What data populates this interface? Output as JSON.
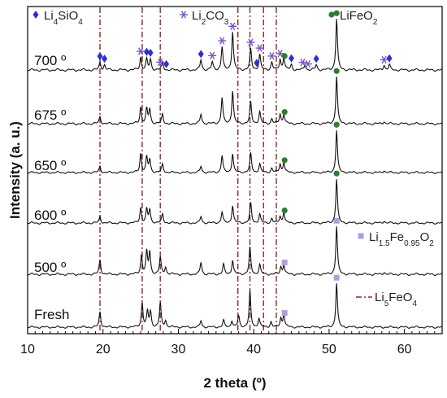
{
  "chart_data": {
    "type": "line",
    "xlabel": "2 theta (º)",
    "ylabel": "Intensity (a. u.)",
    "xlim": [
      10,
      65
    ],
    "x_ticks": [
      "10",
      "20",
      "30",
      "40",
      "50",
      "60"
    ],
    "grid": false,
    "reference_lines": {
      "name": "Li5FeO4",
      "legend_text": "Li",
      "legend_parts": [
        [
          "5",
          "sub"
        ],
        [
          "FeO",
          ""
        ],
        [
          "4",
          "sub"
        ]
      ],
      "color": "#8b2a22",
      "positions": [
        19.6,
        25.2,
        27.6,
        37.9,
        39.5,
        41.3,
        43.0
      ]
    },
    "phase_legend": [
      {
        "name": "Li4SiO4",
        "marker": "diamond",
        "color": "#2f2fcf",
        "glyph": "♦",
        "text": "Li",
        "parts": [
          [
            "4",
            "sub"
          ],
          [
            "SiO",
            ""
          ],
          [
            "4",
            "sub"
          ]
        ]
      },
      {
        "name": "Li2CO3",
        "marker": "asterisk",
        "color": "#7a52c8",
        "glyph": "*",
        "text": "Li",
        "parts": [
          [
            "2",
            "sub"
          ],
          [
            "CO",
            ""
          ],
          [
            "3",
            "sub"
          ]
        ]
      },
      {
        "name": "LiFeO2",
        "marker": "circle",
        "color": "#2e7d32",
        "glyph": "●",
        "text": "LiFeO",
        "parts": [
          [
            "2",
            "sub"
          ]
        ]
      },
      {
        "name": "Li1.5Fe0.95O2",
        "marker": "square",
        "color": "#b79be0",
        "glyph": "■",
        "text": "Li",
        "parts": [
          [
            "1.5",
            "sub"
          ],
          [
            "Fe",
            ""
          ],
          [
            "0.95",
            "sub"
          ],
          [
            "O",
            ""
          ],
          [
            "2",
            "sub"
          ]
        ]
      }
    ],
    "series": [
      {
        "name": "Fresh",
        "label": "Fresh",
        "color": "#111111",
        "peaks": [
          [
            19.6,
            0.35
          ],
          [
            25.2,
            0.55
          ],
          [
            25.9,
            0.35
          ],
          [
            26.3,
            0.35
          ],
          [
            27.6,
            0.55
          ],
          [
            28.3,
            0.15
          ],
          [
            33.0,
            0.15
          ],
          [
            36.0,
            0.15
          ],
          [
            37.1,
            0.15
          ],
          [
            38.0,
            0.25
          ],
          [
            39.5,
            0.8
          ],
          [
            40.7,
            0.2
          ],
          [
            42.3,
            0.12
          ],
          [
            43.6,
            0.2
          ],
          [
            44.0,
            0.3
          ],
          [
            51.0,
            1.0
          ]
        ],
        "markers": [
          {
            "type": "square",
            "x": [
              44.1,
              51.0
            ]
          }
        ]
      },
      {
        "name": "500 º",
        "label": "500 º",
        "color": "#111111",
        "peaks": [
          [
            19.6,
            0.3
          ],
          [
            25.1,
            0.4
          ],
          [
            25.8,
            0.45
          ],
          [
            26.2,
            0.45
          ],
          [
            27.6,
            0.35
          ],
          [
            28.3,
            0.15
          ],
          [
            33.0,
            0.25
          ],
          [
            36.0,
            0.2
          ],
          [
            37.2,
            0.3
          ],
          [
            39.5,
            0.55
          ],
          [
            40.8,
            0.2
          ],
          [
            43.6,
            0.15
          ],
          [
            44.0,
            0.2
          ],
          [
            51.0,
            1.0
          ],
          [
            57.3,
            0.05
          ]
        ],
        "markers": [
          {
            "type": "square",
            "x": [
              44.1,
              51.0
            ]
          }
        ]
      },
      {
        "name": "600 º",
        "label": "600 º",
        "color": "#111111",
        "peaks": [
          [
            19.6,
            0.15
          ],
          [
            25.0,
            0.35
          ],
          [
            25.8,
            0.3
          ],
          [
            26.2,
            0.3
          ],
          [
            27.9,
            0.2
          ],
          [
            33.0,
            0.15
          ],
          [
            35.8,
            0.25
          ],
          [
            37.2,
            0.4
          ],
          [
            39.6,
            0.45
          ],
          [
            40.8,
            0.2
          ],
          [
            42.4,
            0.1
          ],
          [
            43.5,
            0.15
          ],
          [
            44.0,
            0.25
          ],
          [
            51.0,
            1.0
          ],
          [
            57.3,
            0.05
          ]
        ],
        "markers": [
          {
            "type": "circle",
            "x": [
              44.1,
              51.0
            ]
          }
        ]
      },
      {
        "name": "650 º",
        "label": "650 º",
        "color": "#111111",
        "peaks": [
          [
            19.6,
            0.15
          ],
          [
            25.0,
            0.45
          ],
          [
            25.8,
            0.35
          ],
          [
            26.2,
            0.3
          ],
          [
            27.9,
            0.2
          ],
          [
            33.0,
            0.15
          ],
          [
            35.8,
            0.4
          ],
          [
            37.2,
            0.45
          ],
          [
            39.6,
            0.45
          ],
          [
            40.8,
            0.2
          ],
          [
            42.4,
            0.1
          ],
          [
            43.5,
            0.2
          ],
          [
            44.0,
            0.25
          ],
          [
            51.0,
            1.0
          ],
          [
            57.3,
            0.05
          ]
        ],
        "markers": [
          {
            "type": "circle",
            "x": [
              44.1,
              51.0
            ]
          }
        ]
      },
      {
        "name": "675 º",
        "label": "675 º",
        "color": "#111111",
        "peaks": [
          [
            19.6,
            0.15
          ],
          [
            25.0,
            0.35
          ],
          [
            25.8,
            0.3
          ],
          [
            26.2,
            0.3
          ],
          [
            27.9,
            0.2
          ],
          [
            33.0,
            0.2
          ],
          [
            35.8,
            0.55
          ],
          [
            37.2,
            0.7
          ],
          [
            39.6,
            0.45
          ],
          [
            40.8,
            0.25
          ],
          [
            42.4,
            0.1
          ],
          [
            43.5,
            0.2
          ],
          [
            44.0,
            0.2
          ],
          [
            51.0,
            1.0
          ],
          [
            57.3,
            0.05
          ]
        ],
        "markers": [
          {
            "type": "circle",
            "x": [
              44.1,
              51.0
            ]
          }
        ]
      },
      {
        "name": "700 º",
        "label": "700 º",
        "color": "#111111",
        "peaks": [
          [
            19.6,
            0.15
          ],
          [
            20.2,
            0.1
          ],
          [
            25.0,
            0.25
          ],
          [
            25.8,
            0.2
          ],
          [
            26.3,
            0.2
          ],
          [
            27.9,
            0.15
          ],
          [
            33.0,
            0.2
          ],
          [
            34.5,
            0.15
          ],
          [
            35.8,
            0.45
          ],
          [
            37.2,
            0.75
          ],
          [
            39.6,
            0.4
          ],
          [
            40.8,
            0.3
          ],
          [
            42.4,
            0.15
          ],
          [
            43.5,
            0.2
          ],
          [
            44.0,
            0.25
          ],
          [
            45.0,
            0.1
          ],
          [
            46.8,
            0.1
          ],
          [
            48.3,
            0.1
          ],
          [
            51.0,
            1.0
          ],
          [
            57.3,
            0.1
          ],
          [
            58.0,
            0.1
          ]
        ],
        "markers": [
          {
            "type": "diamond",
            "x": [
              19.6,
              20.2,
              25.8,
              26.3,
              28.4,
              33.0,
              40.4,
              45.0,
              48.3,
              58.0
            ]
          },
          {
            "type": "asterisk",
            "x": [
              25.0,
              27.6,
              34.5,
              35.8,
              37.2,
              39.6,
              40.8,
              42.4,
              43.5,
              46.5,
              47.2,
              57.3
            ]
          },
          {
            "type": "circle",
            "x": [
              44.1,
              51.0
            ]
          }
        ]
      }
    ]
  }
}
